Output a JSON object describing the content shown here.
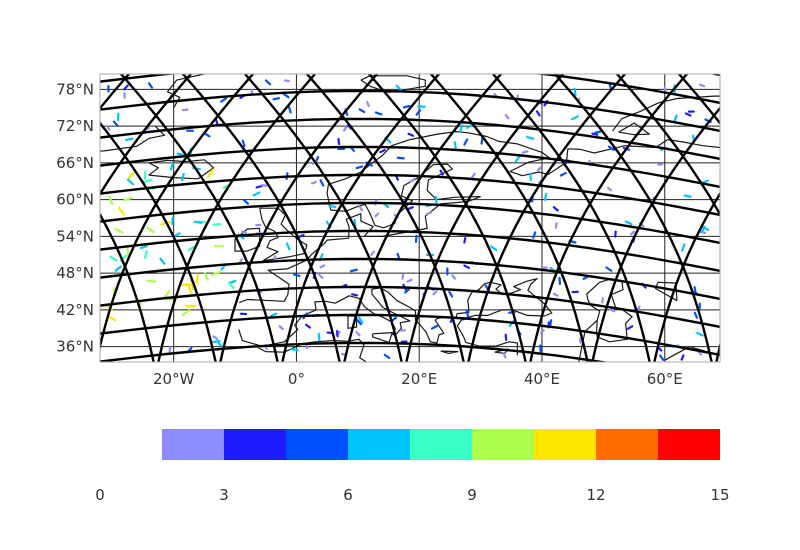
{
  "chart_data": {
    "type": "map",
    "projection": "PlateCarree",
    "extent": {
      "lon": [
        -32,
        69
      ],
      "lat": [
        33.5,
        80.5
      ]
    },
    "lat_ticks": [
      {
        "value": 78,
        "label": "78°N"
      },
      {
        "value": 72,
        "label": "72°N"
      },
      {
        "value": 66,
        "label": "66°N"
      },
      {
        "value": 60,
        "label": "60°N"
      },
      {
        "value": 54,
        "label": "54°N"
      },
      {
        "value": 48,
        "label": "48°N"
      },
      {
        "value": 42,
        "label": "42°N"
      },
      {
        "value": 36,
        "label": "36°N"
      }
    ],
    "lon_ticks": [
      {
        "value": -20,
        "label": "20°W"
      },
      {
        "value": 0,
        "label": "0°"
      },
      {
        "value": 20,
        "label": "20°E"
      },
      {
        "value": 40,
        "label": "40°E"
      },
      {
        "value": 60,
        "label": "60°E"
      }
    ],
    "overlay": "triangular mesh (black curved grid lines)",
    "field": "wind vectors colored by magnitude",
    "colorbar": {
      "min": 0,
      "max": 15,
      "tick_labels": [
        "0",
        "3",
        "6",
        "9",
        "12",
        "15"
      ],
      "bins": [
        {
          "from": 1.5,
          "to": 3,
          "color": "#8c8cff"
        },
        {
          "from": 3,
          "to": 4.5,
          "color": "#1c1cff"
        },
        {
          "from": 4.5,
          "to": 6,
          "color": "#0050ff"
        },
        {
          "from": 6,
          "to": 7.5,
          "color": "#00c4ff"
        },
        {
          "from": 7.5,
          "to": 9,
          "color": "#38ffc4"
        },
        {
          "from": 9,
          "to": 10.5,
          "color": "#acff4c"
        },
        {
          "from": 10.5,
          "to": 12,
          "color": "#ffe600"
        },
        {
          "from": 12,
          "to": 13.5,
          "color": "#ff6c00"
        },
        {
          "from": 13.5,
          "to": 15,
          "color": "#ff0000"
        }
      ]
    }
  }
}
